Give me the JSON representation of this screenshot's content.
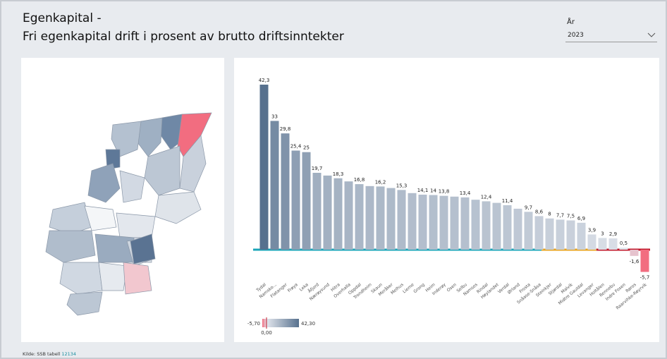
{
  "header": {
    "title_line1": "Egenkapital -",
    "title_line2": "Fri  egenkapital drift i prosent av brutto driftsinntekter"
  },
  "filter": {
    "label": "År",
    "value": "2023"
  },
  "chart_data": {
    "type": "bar",
    "categories": [
      "Tydal",
      "Namsko...",
      "Flatanger",
      "Frøya",
      "Leka",
      "Åfjord",
      "Nærøysund",
      "Hitra",
      "Overhalla",
      "Oppdal",
      "Trondheim",
      "Skaun",
      "Meråker",
      "Melhus",
      "Lierne",
      "Grong",
      "Heim",
      "Inderøy",
      "Osen",
      "Selbu",
      "Namsos",
      "Rindal",
      "Høylandet",
      "Verdal",
      "Ørland",
      "Frosta",
      "Snåase-Snåsa",
      "Steinkjer",
      "Stjørdal",
      "Malvik",
      "Midtre Gauldal",
      "Levanger",
      "Holtålen",
      "Rennebu",
      "Indre Fosen",
      "Røros",
      "Raarvihke-Røyrvik"
    ],
    "values": [
      42.3,
      33,
      29.8,
      25.4,
      25,
      19.7,
      19,
      18.3,
      17.5,
      16.8,
      16.3,
      16.2,
      15.8,
      15.3,
      14.5,
      14.1,
      14,
      13.8,
      13.6,
      13.4,
      12.8,
      12.4,
      12,
      11.4,
      10.5,
      9.7,
      8.6,
      8,
      7.7,
      7.5,
      6.9,
      3.9,
      3,
      2.9,
      0.5,
      -1.6,
      -5.7
    ],
    "value_labels": [
      "42,3",
      "33",
      "29,8",
      "25,4",
      "25",
      "19,7",
      null,
      "18,3",
      null,
      "16,8",
      null,
      "16,2",
      null,
      "15,3",
      null,
      "14,1",
      "14",
      "13,8",
      null,
      "13,4",
      null,
      "12,4",
      null,
      "11,4",
      null,
      "9,7",
      "8,6",
      "8",
      "7,7",
      "7,5",
      "6,9",
      "3,9",
      "3",
      "2,9",
      "0,5",
      "-1,6",
      "-5,7"
    ],
    "color_scale": {
      "low": "#f26d80",
      "mid": "#e1e5ec",
      "high": "#57718e"
    },
    "legend": {
      "min_label": "-5,70",
      "mid_label": "0,00",
      "max_label": "42,30"
    }
  },
  "footer": {
    "source": "Kilde: SSB tabell",
    "table": "12134"
  }
}
